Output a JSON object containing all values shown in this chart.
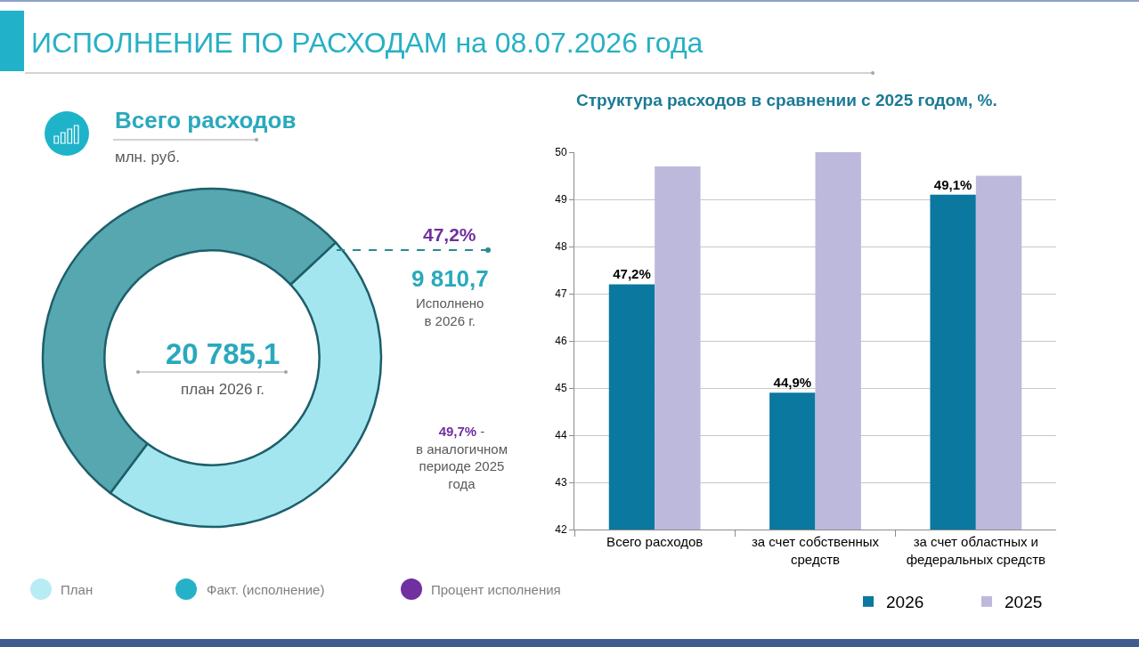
{
  "chart_data": [
    {
      "type": "donut",
      "title": "ИСПОЛНЕНИЕ ПО РАСХОДАМ на 08.07.2026 года",
      "subtitle": "Всего расходов",
      "categories": [
        null,
        null
      ],
      "values": [
        47.2,
        52.8
      ],
      "colors": [
        "#a3e6f0",
        "#57a7b0"
      ],
      "annotations": [
        "млн. руб.",
        "20 785,1",
        "план 2026 г.",
        "47,2%",
        "9 810,7",
        "Исполнено в 2026 г.",
        "49,7% - в аналогичном периоде 2025 года",
        "План",
        "Факт. (исполнение)",
        "Процент исполнения"
      ]
    },
    {
      "type": "bar",
      "title": "Структура расходов в сравнении с 2025 годом, %.",
      "categories": [
        "Всего расходов",
        "за счет собственных средств",
        "за счет областных и федеральных средств"
      ],
      "series": [
        {
          "name": "2026",
          "color": "#0b789f",
          "values": [
            47.2,
            44.9,
            49.1
          ],
          "value_labels": [
            "47,2%",
            "44,9%",
            "49,1%"
          ]
        },
        {
          "name": "2025",
          "color": "#bdb9dc",
          "values": [
            49.7,
            50.0,
            49.5
          ]
        }
      ],
      "ylim": [
        42,
        50
      ],
      "yticks": [
        42,
        43,
        44,
        45,
        46,
        47,
        48,
        49,
        50
      ],
      "grid": "y",
      "legend": "bottom right"
    }
  ]
}
